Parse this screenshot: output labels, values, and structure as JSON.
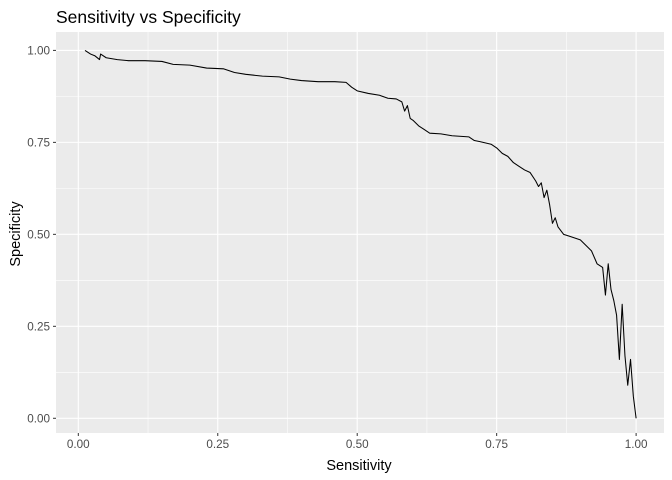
{
  "chart_data": {
    "type": "line",
    "title": "Sensitivity vs Specificity",
    "xlabel": "Sensitivity",
    "ylabel": "Specificity",
    "xlim": [
      -0.04,
      1.05
    ],
    "ylim": [
      -0.04,
      1.05
    ],
    "x_ticks": [
      0.0,
      0.25,
      0.5,
      0.75,
      1.0
    ],
    "x_tick_labels": [
      "0.00",
      "0.25",
      "0.50",
      "0.75",
      "1.00"
    ],
    "y_ticks": [
      0.0,
      0.25,
      0.5,
      0.75,
      1.0
    ],
    "y_tick_labels": [
      "0.00",
      "0.25",
      "0.50",
      "0.75",
      "1.00"
    ],
    "grid": true,
    "legend": "none",
    "colors": {
      "panel": "#ebebeb",
      "grid": "#ffffff",
      "line": "#000000",
      "tick": "#333333"
    },
    "series": [
      {
        "x": [
          0.012,
          0.022,
          0.03,
          0.038,
          0.04,
          0.05,
          0.07,
          0.09,
          0.12,
          0.15,
          0.17,
          0.2,
          0.23,
          0.26,
          0.28,
          0.3,
          0.33,
          0.36,
          0.38,
          0.4,
          0.43,
          0.46,
          0.48,
          0.49,
          0.5,
          0.52,
          0.54,
          0.555,
          0.57,
          0.58,
          0.585,
          0.59,
          0.595,
          0.6,
          0.61,
          0.62,
          0.63,
          0.65,
          0.67,
          0.7,
          0.71,
          0.72,
          0.74,
          0.75,
          0.76,
          0.77,
          0.78,
          0.79,
          0.8,
          0.81,
          0.82,
          0.825,
          0.83,
          0.835,
          0.84,
          0.845,
          0.85,
          0.855,
          0.86,
          0.87,
          0.88,
          0.9,
          0.91,
          0.92,
          0.93,
          0.94,
          0.945,
          0.95,
          0.955,
          0.96,
          0.965,
          0.97,
          0.975,
          0.98,
          0.985,
          0.99,
          0.995,
          1.0
        ],
        "y": [
          1.0,
          0.99,
          0.985,
          0.975,
          0.99,
          0.98,
          0.975,
          0.972,
          0.972,
          0.97,
          0.962,
          0.96,
          0.952,
          0.95,
          0.94,
          0.935,
          0.93,
          0.928,
          0.922,
          0.918,
          0.915,
          0.915,
          0.913,
          0.9,
          0.89,
          0.883,
          0.878,
          0.87,
          0.868,
          0.86,
          0.835,
          0.85,
          0.815,
          0.81,
          0.795,
          0.785,
          0.775,
          0.773,
          0.768,
          0.765,
          0.755,
          0.752,
          0.745,
          0.735,
          0.72,
          0.712,
          0.695,
          0.685,
          0.675,
          0.668,
          0.645,
          0.63,
          0.64,
          0.6,
          0.62,
          0.58,
          0.53,
          0.545,
          0.52,
          0.5,
          0.495,
          0.485,
          0.47,
          0.455,
          0.42,
          0.41,
          0.335,
          0.42,
          0.35,
          0.32,
          0.28,
          0.16,
          0.31,
          0.17,
          0.09,
          0.16,
          0.06,
          0.0
        ]
      }
    ]
  }
}
